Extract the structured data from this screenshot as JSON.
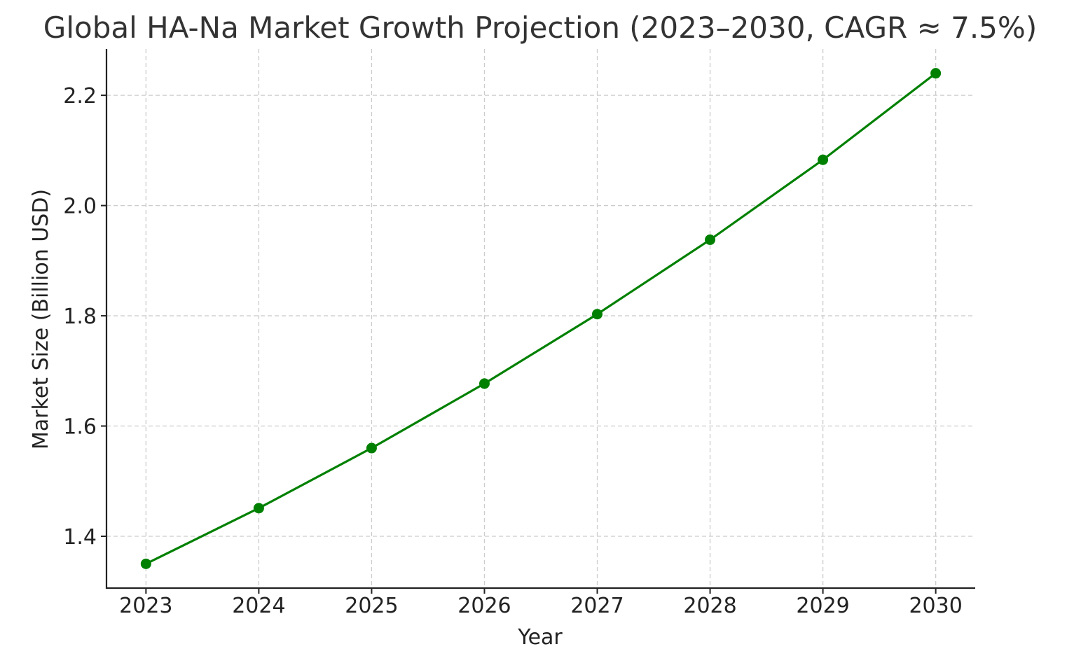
{
  "chart_data": {
    "type": "line",
    "title": "Global HA-Na Market Growth Projection (2023–2030, CAGR ≈ 7.5%)",
    "xlabel": "Year",
    "ylabel": "Market Size (Billion USD)",
    "x": [
      2023,
      2024,
      2025,
      2026,
      2027,
      2028,
      2029,
      2030
    ],
    "x_tick_labels": [
      "2023",
      "2024",
      "2025",
      "2026",
      "2027",
      "2028",
      "2029",
      "2030"
    ],
    "series": [
      {
        "values": [
          1.35,
          1.451,
          1.56,
          1.677,
          1.803,
          1.938,
          2.083,
          2.24
        ],
        "color": "#008000",
        "marker": "circle"
      }
    ],
    "y_ticks": [
      1.4,
      1.6,
      1.8,
      2.0,
      2.2
    ],
    "y_tick_labels": [
      "1.4",
      "1.6",
      "1.8",
      "2.0",
      "2.2"
    ],
    "ylim": [
      1.306,
      2.284
    ],
    "xlim": [
      2022.65,
      2030.35
    ],
    "grid": true,
    "legend": "none"
  }
}
